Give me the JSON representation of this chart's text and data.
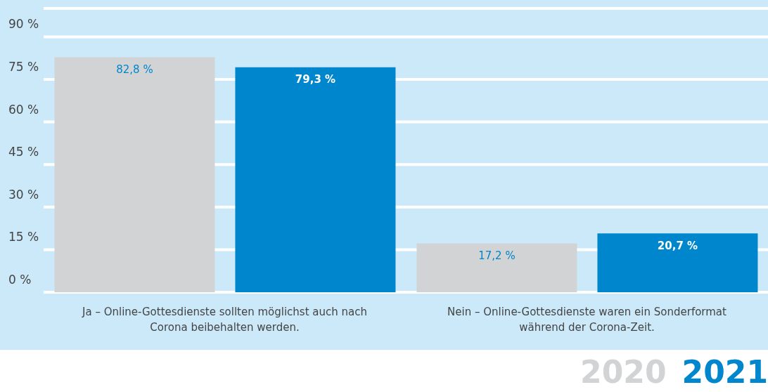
{
  "chart_data": {
    "type": "bar",
    "categories": [
      "Ja – Online-Gottesdienste sollten möglichst auch nach Corona beibehalten werden.",
      "Nein – Online-Gottesdienste waren ein Sonderformat während der Corona-Zeit."
    ],
    "series": [
      {
        "name": "2020",
        "color": "#d1d3d4",
        "values": [
          82.8,
          17.2
        ],
        "value_labels": [
          "82,8 %",
          "17,2 %"
        ]
      },
      {
        "name": "2021",
        "color": "#0086cd",
        "values": [
          79.3,
          20.7
        ],
        "value_labels": [
          "79,3 %",
          "20,7 %"
        ]
      }
    ],
    "ylim": [
      0,
      100
    ],
    "yticks": [
      {
        "value": 0,
        "label": "0 %"
      },
      {
        "value": 15,
        "label": "15 %"
      },
      {
        "value": 30,
        "label": "30 %"
      },
      {
        "value": 45,
        "label": "45 %"
      },
      {
        "value": 60,
        "label": "60 %"
      },
      {
        "value": 75,
        "label": "75 %"
      },
      {
        "value": 90,
        "label": "90 %"
      }
    ],
    "grid": "y",
    "legend": "bottom right"
  }
}
